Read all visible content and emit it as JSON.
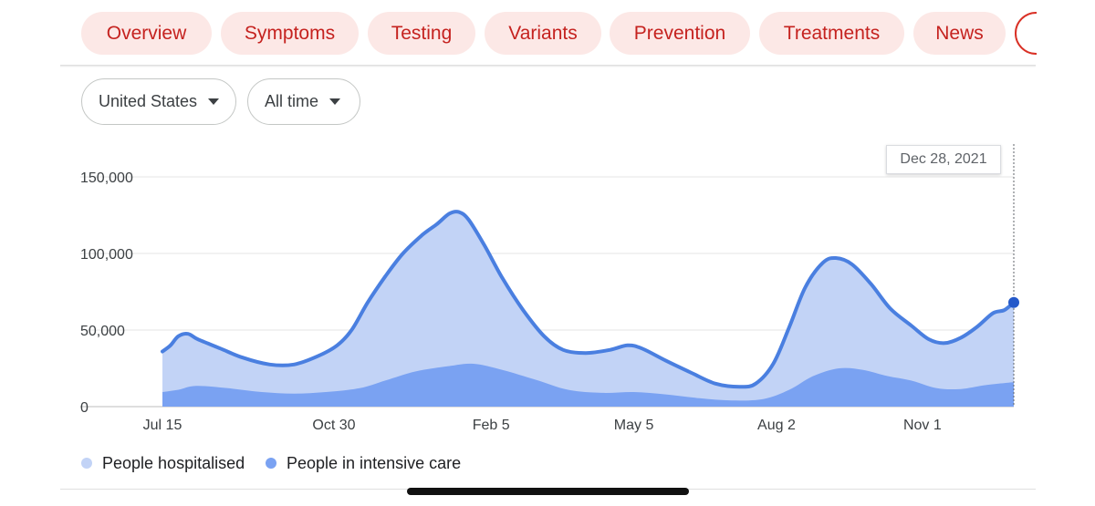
{
  "tabs": [
    {
      "label": "Overview"
    },
    {
      "label": "Symptoms"
    },
    {
      "label": "Testing"
    },
    {
      "label": "Variants"
    },
    {
      "label": "Prevention"
    },
    {
      "label": "Treatments"
    },
    {
      "label": "News"
    }
  ],
  "filters": {
    "region": "United States",
    "range": "All time"
  },
  "tooltip": {
    "date": "Dec 28, 2021"
  },
  "colors": {
    "hospitalised_fill": "#c2d3f6",
    "hospitalised_line": "#4a7fe0",
    "icu_fill": "#7aa2f2",
    "marker": "#2459c9",
    "tab_bg": "#fce8e6",
    "tab_text": "#c5221f"
  },
  "chart_data": {
    "type": "area",
    "x_tick_labels": [
      "Jul 15",
      "Oct 30",
      "Feb 5",
      "May 5",
      "Aug 2",
      "Nov 1"
    ],
    "y_tick_labels": [
      "0",
      "50,000",
      "100,000",
      "150,000"
    ],
    "ylim": [
      0,
      150000
    ],
    "xlim": [
      "2020-07-15",
      "2021-12-28"
    ],
    "grid": true,
    "legend_position": "bottom-left",
    "series": [
      {
        "name": "People hospitalised",
        "points": [
          [
            "2020-07-15",
            36000
          ],
          [
            "2020-07-20",
            40000
          ],
          [
            "2020-07-25",
            46000
          ],
          [
            "2020-07-31",
            47500
          ],
          [
            "2020-08-06",
            44000
          ],
          [
            "2020-08-20",
            38000
          ],
          [
            "2020-09-03",
            32000
          ],
          [
            "2020-09-20",
            27500
          ],
          [
            "2020-10-05",
            27500
          ],
          [
            "2020-10-20",
            33000
          ],
          [
            "2020-11-01",
            40000
          ],
          [
            "2020-11-10",
            50000
          ],
          [
            "2020-11-20",
            68000
          ],
          [
            "2020-12-01",
            85000
          ],
          [
            "2020-12-12",
            100000
          ],
          [
            "2020-12-24",
            112000
          ],
          [
            "2021-01-02",
            119000
          ],
          [
            "2021-01-10",
            126000
          ],
          [
            "2021-01-16",
            127000
          ],
          [
            "2021-01-22",
            122000
          ],
          [
            "2021-02-01",
            105000
          ],
          [
            "2021-02-12",
            84000
          ],
          [
            "2021-02-25",
            63000
          ],
          [
            "2021-03-10",
            46000
          ],
          [
            "2021-03-22",
            37000
          ],
          [
            "2021-04-05",
            35000
          ],
          [
            "2021-04-20",
            37000
          ],
          [
            "2021-05-01",
            40000
          ],
          [
            "2021-05-10",
            38000
          ],
          [
            "2021-05-25",
            30000
          ],
          [
            "2021-06-10",
            22000
          ],
          [
            "2021-06-25",
            15000
          ],
          [
            "2021-07-10",
            13000
          ],
          [
            "2021-07-20",
            15000
          ],
          [
            "2021-07-31",
            28000
          ],
          [
            "2021-08-10",
            52000
          ],
          [
            "2021-08-20",
            78000
          ],
          [
            "2021-08-31",
            94000
          ],
          [
            "2021-09-08",
            97000
          ],
          [
            "2021-09-18",
            93000
          ],
          [
            "2021-09-30",
            80000
          ],
          [
            "2021-10-12",
            64000
          ],
          [
            "2021-10-25",
            53000
          ],
          [
            "2021-11-05",
            44000
          ],
          [
            "2021-11-15",
            41500
          ],
          [
            "2021-11-25",
            45000
          ],
          [
            "2021-12-05",
            52000
          ],
          [
            "2021-12-15",
            61000
          ],
          [
            "2021-12-22",
            63000
          ],
          [
            "2021-12-28",
            68000
          ]
        ]
      },
      {
        "name": "People in intensive care",
        "points": [
          [
            "2020-07-15",
            9500
          ],
          [
            "2020-07-25",
            11000
          ],
          [
            "2020-08-05",
            13500
          ],
          [
            "2020-08-25",
            12000
          ],
          [
            "2020-09-15",
            9500
          ],
          [
            "2020-10-05",
            8500
          ],
          [
            "2020-10-25",
            9500
          ],
          [
            "2020-11-15",
            12000
          ],
          [
            "2020-12-01",
            17000
          ],
          [
            "2020-12-20",
            23000
          ],
          [
            "2021-01-10",
            26500
          ],
          [
            "2021-01-25",
            28000
          ],
          [
            "2021-02-12",
            24000
          ],
          [
            "2021-03-05",
            17500
          ],
          [
            "2021-03-25",
            11000
          ],
          [
            "2021-04-15",
            9000
          ],
          [
            "2021-05-05",
            9500
          ],
          [
            "2021-05-25",
            8000
          ],
          [
            "2021-06-15",
            5500
          ],
          [
            "2021-07-05",
            4000
          ],
          [
            "2021-07-25",
            5000
          ],
          [
            "2021-08-10",
            11000
          ],
          [
            "2021-08-25",
            20000
          ],
          [
            "2021-09-10",
            25000
          ],
          [
            "2021-09-25",
            24000
          ],
          [
            "2021-10-10",
            20000
          ],
          [
            "2021-10-25",
            17000
          ],
          [
            "2021-11-10",
            12000
          ],
          [
            "2021-11-25",
            11500
          ],
          [
            "2021-12-10",
            14000
          ],
          [
            "2021-12-28",
            16000
          ]
        ]
      }
    ],
    "highlight_point": [
      "2021-12-28",
      68000
    ]
  },
  "legend": [
    {
      "label": "People hospitalised"
    },
    {
      "label": "People in intensive care"
    }
  ]
}
